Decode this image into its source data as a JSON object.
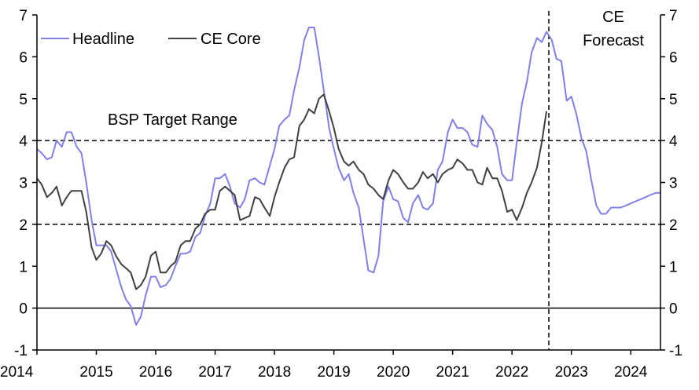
{
  "chart_data": {
    "type": "line",
    "title": "",
    "xlabel": "",
    "ylabel": "",
    "xlim": [
      2014,
      2024.5
    ],
    "ylim": [
      -1,
      7
    ],
    "x_ticks": [
      "2014",
      "2015",
      "2016",
      "2017",
      "2018",
      "2019",
      "2020",
      "2021",
      "2022",
      "2023",
      "2024"
    ],
    "y_ticks_left": [
      "-1",
      "0",
      "1",
      "2",
      "3",
      "4",
      "5",
      "6",
      "7"
    ],
    "y_ticks_right": [
      "-1",
      "0",
      "1",
      "2",
      "3",
      "4",
      "5",
      "6",
      "7"
    ],
    "legend": [
      "Headline",
      "CE Core"
    ],
    "legend_position": "top-left",
    "annotations": {
      "target_range": "BSP Target Range",
      "forecast_line1": "CE",
      "forecast_line2": "Forecast"
    },
    "reference_lines": {
      "target_low": 2,
      "target_high": 4,
      "zero": 0,
      "forecast_start": 2022.62
    },
    "series": [
      {
        "name": "Headline",
        "color": "#8080e8",
        "points": [
          [
            2014.0,
            3.8
          ],
          [
            2014.08,
            3.7
          ],
          [
            2014.17,
            3.55
          ],
          [
            2014.25,
            3.6
          ],
          [
            2014.33,
            4.0
          ],
          [
            2014.42,
            3.85
          ],
          [
            2014.5,
            4.2
          ],
          [
            2014.58,
            4.2
          ],
          [
            2014.67,
            3.85
          ],
          [
            2014.75,
            3.7
          ],
          [
            2014.83,
            3.0
          ],
          [
            2014.92,
            2.1
          ],
          [
            2015.0,
            1.5
          ],
          [
            2015.08,
            1.5
          ],
          [
            2015.17,
            1.5
          ],
          [
            2015.25,
            1.35
          ],
          [
            2015.33,
            0.95
          ],
          [
            2015.42,
            0.5
          ],
          [
            2015.5,
            0.2
          ],
          [
            2015.58,
            0.05
          ],
          [
            2015.67,
            -0.4
          ],
          [
            2015.75,
            -0.2
          ],
          [
            2015.83,
            0.3
          ],
          [
            2015.92,
            0.75
          ],
          [
            2016.0,
            0.75
          ],
          [
            2016.08,
            0.5
          ],
          [
            2016.17,
            0.55
          ],
          [
            2016.25,
            0.7
          ],
          [
            2016.33,
            1.0
          ],
          [
            2016.42,
            1.3
          ],
          [
            2016.5,
            1.3
          ],
          [
            2016.58,
            1.35
          ],
          [
            2016.67,
            1.7
          ],
          [
            2016.75,
            1.8
          ],
          [
            2016.83,
            2.2
          ],
          [
            2016.92,
            2.5
          ],
          [
            2017.0,
            3.1
          ],
          [
            2017.08,
            3.1
          ],
          [
            2017.17,
            3.2
          ],
          [
            2017.25,
            2.9
          ],
          [
            2017.33,
            2.5
          ],
          [
            2017.42,
            2.4
          ],
          [
            2017.5,
            2.6
          ],
          [
            2017.58,
            3.05
          ],
          [
            2017.67,
            3.1
          ],
          [
            2017.75,
            3.0
          ],
          [
            2017.83,
            2.95
          ],
          [
            2017.92,
            3.4
          ],
          [
            2018.0,
            3.8
          ],
          [
            2018.08,
            4.35
          ],
          [
            2018.17,
            4.5
          ],
          [
            2018.25,
            4.6
          ],
          [
            2018.33,
            5.2
          ],
          [
            2018.42,
            5.75
          ],
          [
            2018.5,
            6.4
          ],
          [
            2018.58,
            6.7
          ],
          [
            2018.67,
            6.7
          ],
          [
            2018.75,
            6.0
          ],
          [
            2018.83,
            5.2
          ],
          [
            2018.92,
            4.3
          ],
          [
            2019.0,
            3.8
          ],
          [
            2019.08,
            3.35
          ],
          [
            2019.17,
            3.05
          ],
          [
            2019.25,
            3.2
          ],
          [
            2019.33,
            2.75
          ],
          [
            2019.42,
            2.4
          ],
          [
            2019.5,
            1.65
          ],
          [
            2019.58,
            0.9
          ],
          [
            2019.67,
            0.85
          ],
          [
            2019.75,
            1.25
          ],
          [
            2019.83,
            2.55
          ],
          [
            2019.92,
            2.9
          ],
          [
            2020.0,
            2.6
          ],
          [
            2020.08,
            2.55
          ],
          [
            2020.17,
            2.15
          ],
          [
            2020.25,
            2.05
          ],
          [
            2020.33,
            2.5
          ],
          [
            2020.42,
            2.7
          ],
          [
            2020.5,
            2.4
          ],
          [
            2020.58,
            2.35
          ],
          [
            2020.67,
            2.5
          ],
          [
            2020.75,
            3.3
          ],
          [
            2020.83,
            3.5
          ],
          [
            2020.92,
            4.2
          ],
          [
            2021.0,
            4.5
          ],
          [
            2021.08,
            4.3
          ],
          [
            2021.17,
            4.3
          ],
          [
            2021.25,
            4.2
          ],
          [
            2021.33,
            3.9
          ],
          [
            2021.42,
            3.85
          ],
          [
            2021.5,
            4.6
          ],
          [
            2021.58,
            4.4
          ],
          [
            2021.67,
            4.25
          ],
          [
            2021.75,
            3.85
          ],
          [
            2021.83,
            3.2
          ],
          [
            2021.92,
            3.05
          ],
          [
            2022.0,
            3.05
          ],
          [
            2022.08,
            3.95
          ],
          [
            2022.17,
            4.9
          ],
          [
            2022.25,
            5.4
          ],
          [
            2022.33,
            6.1
          ],
          [
            2022.42,
            6.45
          ],
          [
            2022.5,
            6.35
          ],
          [
            2022.58,
            6.6
          ],
          [
            2022.67,
            6.4
          ],
          [
            2022.75,
            5.95
          ],
          [
            2022.83,
            5.9
          ],
          [
            2022.92,
            4.95
          ],
          [
            2023.0,
            5.05
          ],
          [
            2023.08,
            4.65
          ],
          [
            2023.17,
            4.05
          ],
          [
            2023.25,
            3.75
          ],
          [
            2023.33,
            3.1
          ],
          [
            2023.42,
            2.45
          ],
          [
            2023.5,
            2.25
          ],
          [
            2023.58,
            2.25
          ],
          [
            2023.67,
            2.4
          ],
          [
            2023.75,
            2.4
          ],
          [
            2023.83,
            2.4
          ],
          [
            2023.92,
            2.45
          ],
          [
            2024.0,
            2.5
          ],
          [
            2024.08,
            2.55
          ],
          [
            2024.17,
            2.6
          ],
          [
            2024.25,
            2.65
          ],
          [
            2024.33,
            2.7
          ],
          [
            2024.42,
            2.75
          ],
          [
            2024.5,
            2.75
          ]
        ]
      },
      {
        "name": "CE Core",
        "color": "#404040",
        "points": [
          [
            2014.0,
            3.1
          ],
          [
            2014.08,
            2.95
          ],
          [
            2014.17,
            2.65
          ],
          [
            2014.25,
            2.75
          ],
          [
            2014.33,
            2.9
          ],
          [
            2014.42,
            2.45
          ],
          [
            2014.5,
            2.65
          ],
          [
            2014.58,
            2.8
          ],
          [
            2014.67,
            2.8
          ],
          [
            2014.75,
            2.8
          ],
          [
            2014.83,
            2.3
          ],
          [
            2014.92,
            1.45
          ],
          [
            2015.0,
            1.15
          ],
          [
            2015.08,
            1.3
          ],
          [
            2015.17,
            1.6
          ],
          [
            2015.25,
            1.5
          ],
          [
            2015.33,
            1.25
          ],
          [
            2015.42,
            1.05
          ],
          [
            2015.5,
            0.95
          ],
          [
            2015.58,
            0.85
          ],
          [
            2015.67,
            0.45
          ],
          [
            2015.75,
            0.55
          ],
          [
            2015.83,
            0.75
          ],
          [
            2015.92,
            1.25
          ],
          [
            2016.0,
            1.35
          ],
          [
            2016.08,
            0.85
          ],
          [
            2016.17,
            0.85
          ],
          [
            2016.25,
            1.0
          ],
          [
            2016.33,
            1.1
          ],
          [
            2016.42,
            1.5
          ],
          [
            2016.5,
            1.6
          ],
          [
            2016.58,
            1.6
          ],
          [
            2016.67,
            1.9
          ],
          [
            2016.75,
            2.0
          ],
          [
            2016.83,
            2.25
          ],
          [
            2016.92,
            2.35
          ],
          [
            2017.0,
            2.35
          ],
          [
            2017.08,
            2.8
          ],
          [
            2017.17,
            2.9
          ],
          [
            2017.25,
            2.8
          ],
          [
            2017.33,
            2.7
          ],
          [
            2017.42,
            2.1
          ],
          [
            2017.5,
            2.15
          ],
          [
            2017.58,
            2.2
          ],
          [
            2017.67,
            2.65
          ],
          [
            2017.75,
            2.6
          ],
          [
            2017.83,
            2.4
          ],
          [
            2017.92,
            2.2
          ],
          [
            2018.0,
            2.65
          ],
          [
            2018.08,
            3.0
          ],
          [
            2018.17,
            3.35
          ],
          [
            2018.25,
            3.55
          ],
          [
            2018.33,
            3.6
          ],
          [
            2018.42,
            4.35
          ],
          [
            2018.5,
            4.5
          ],
          [
            2018.58,
            4.75
          ],
          [
            2018.67,
            4.65
          ],
          [
            2018.75,
            5.0
          ],
          [
            2018.83,
            5.1
          ],
          [
            2018.92,
            4.7
          ],
          [
            2019.0,
            4.3
          ],
          [
            2019.08,
            3.8
          ],
          [
            2019.17,
            3.5
          ],
          [
            2019.25,
            3.4
          ],
          [
            2019.33,
            3.5
          ],
          [
            2019.42,
            3.3
          ],
          [
            2019.5,
            3.2
          ],
          [
            2019.58,
            2.95
          ],
          [
            2019.67,
            2.85
          ],
          [
            2019.75,
            2.7
          ],
          [
            2019.83,
            2.6
          ],
          [
            2019.92,
            3.05
          ],
          [
            2020.0,
            3.3
          ],
          [
            2020.08,
            3.2
          ],
          [
            2020.17,
            3.0
          ],
          [
            2020.25,
            2.85
          ],
          [
            2020.33,
            2.85
          ],
          [
            2020.42,
            3.0
          ],
          [
            2020.5,
            3.25
          ],
          [
            2020.58,
            3.1
          ],
          [
            2020.67,
            3.2
          ],
          [
            2020.75,
            3.0
          ],
          [
            2020.83,
            3.2
          ],
          [
            2020.92,
            3.3
          ],
          [
            2021.0,
            3.35
          ],
          [
            2021.08,
            3.55
          ],
          [
            2021.17,
            3.45
          ],
          [
            2021.25,
            3.3
          ],
          [
            2021.33,
            3.3
          ],
          [
            2021.42,
            3.0
          ],
          [
            2021.5,
            2.95
          ],
          [
            2021.58,
            3.35
          ],
          [
            2021.67,
            3.1
          ],
          [
            2021.75,
            3.1
          ],
          [
            2021.83,
            2.8
          ],
          [
            2021.92,
            2.3
          ],
          [
            2022.0,
            2.35
          ],
          [
            2022.08,
            2.1
          ],
          [
            2022.17,
            2.4
          ],
          [
            2022.25,
            2.75
          ],
          [
            2022.33,
            3.0
          ],
          [
            2022.42,
            3.35
          ],
          [
            2022.5,
            3.95
          ],
          [
            2022.58,
            4.7
          ]
        ]
      }
    ]
  }
}
